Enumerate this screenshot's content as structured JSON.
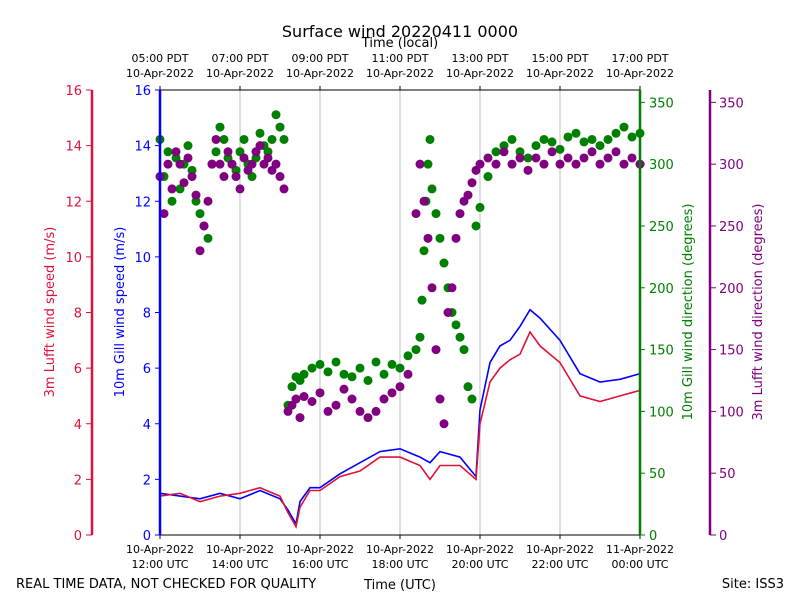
{
  "chart_data": {
    "type": "line+scatter",
    "title": "Surface wind 20220411 0000",
    "top_axis_label": "Time (local)",
    "xlabel": "Time (UTC)",
    "footer_left": "REAL TIME DATA, NOT CHECKED FOR QUALITY",
    "footer_right": "Site: ISS3",
    "x_range_utc_hours": [
      12,
      24
    ],
    "bottom_ticks": [
      {
        "t": 12,
        "line1": "10-Apr-2022",
        "line2": "12:00 UTC"
      },
      {
        "t": 14,
        "line1": "10-Apr-2022",
        "line2": "14:00 UTC"
      },
      {
        "t": 16,
        "line1": "10-Apr-2022",
        "line2": "16:00 UTC"
      },
      {
        "t": 18,
        "line1": "10-Apr-2022",
        "line2": "18:00 UTC"
      },
      {
        "t": 20,
        "line1": "10-Apr-2022",
        "line2": "20:00 UTC"
      },
      {
        "t": 22,
        "line1": "10-Apr-2022",
        "line2": "22:00 UTC"
      },
      {
        "t": 24,
        "line1": "11-Apr-2022",
        "line2": "00:00 UTC"
      }
    ],
    "top_ticks": [
      {
        "t": 12,
        "line1": "05:00 PDT",
        "line2": "10-Apr-2022"
      },
      {
        "t": 14,
        "line1": "07:00 PDT",
        "line2": "10-Apr-2022"
      },
      {
        "t": 16,
        "line1": "09:00 PDT",
        "line2": "10-Apr-2022"
      },
      {
        "t": 18,
        "line1": "11:00 PDT",
        "line2": "10-Apr-2022"
      },
      {
        "t": 20,
        "line1": "13:00 PDT",
        "line2": "10-Apr-2022"
      },
      {
        "t": 22,
        "line1": "15:00 PDT",
        "line2": "10-Apr-2022"
      },
      {
        "t": 24,
        "line1": "17:00 PDT",
        "line2": "10-Apr-2022"
      }
    ],
    "speed_ticks": [
      "0",
      "2",
      "4",
      "6",
      "8",
      "10",
      "12",
      "14",
      "16"
    ],
    "dir_ticks": [
      "0",
      "50",
      "100",
      "150",
      "200",
      "250",
      "300",
      "350"
    ],
    "speed_ylim": [
      0,
      16
    ],
    "dir_ylim": [
      0,
      360
    ],
    "axes": [
      {
        "name": "lufft-speed",
        "label": "3m Lufft wind speed (m/s)",
        "color": "#dc143c",
        "ylim": [
          0,
          16
        ]
      },
      {
        "name": "gill-speed",
        "label": "10m Gill wind speed (m/s)",
        "color": "#0000ff",
        "ylim": [
          0,
          16
        ]
      },
      {
        "name": "gill-direction",
        "label": "10m Gill wind direction (degrees)",
        "color": "#008000",
        "ylim": [
          0,
          360
        ]
      },
      {
        "name": "lufft-direction",
        "label": "3m Lufft wind direction (degrees)",
        "color": "#800080",
        "ylim": [
          0,
          360
        ]
      }
    ],
    "series": [
      {
        "name": "10m Gill wind speed",
        "kind": "line",
        "color": "#0000ff",
        "x": [
          12.0,
          12.5,
          13.0,
          13.5,
          14.0,
          14.5,
          15.0,
          15.2,
          15.4,
          15.5,
          15.75,
          16.0,
          16.5,
          17.0,
          17.5,
          18.0,
          18.5,
          18.75,
          19.0,
          19.5,
          19.9,
          20.0,
          20.25,
          20.5,
          20.75,
          21.0,
          21.25,
          21.5,
          22.0,
          22.5,
          23.0,
          23.5,
          24.0
        ],
        "y": [
          1.5,
          1.4,
          1.3,
          1.5,
          1.3,
          1.6,
          1.3,
          0.9,
          0.4,
          1.2,
          1.7,
          1.7,
          2.2,
          2.6,
          3.0,
          3.1,
          2.8,
          2.6,
          3.0,
          2.8,
          2.1,
          4.5,
          6.2,
          6.8,
          7.0,
          7.5,
          8.1,
          7.8,
          7.0,
          5.8,
          5.5,
          5.6,
          5.8
        ]
      },
      {
        "name": "3m Lufft wind speed",
        "kind": "line",
        "color": "#dc143c",
        "x": [
          12.0,
          12.5,
          13.0,
          13.5,
          14.0,
          14.5,
          15.0,
          15.2,
          15.4,
          15.5,
          15.75,
          16.0,
          16.5,
          17.0,
          17.5,
          18.0,
          18.5,
          18.75,
          19.0,
          19.5,
          19.9,
          20.0,
          20.25,
          20.5,
          20.75,
          21.0,
          21.25,
          21.5,
          22.0,
          22.5,
          23.0,
          23.5,
          24.0
        ],
        "y": [
          1.4,
          1.5,
          1.2,
          1.4,
          1.5,
          1.7,
          1.4,
          0.8,
          0.3,
          1.0,
          1.6,
          1.6,
          2.1,
          2.3,
          2.8,
          2.8,
          2.5,
          2.0,
          2.5,
          2.5,
          2.0,
          4.0,
          5.5,
          6.0,
          6.3,
          6.5,
          7.3,
          6.8,
          6.2,
          5.0,
          4.8,
          5.0,
          5.2
        ]
      },
      {
        "name": "10m Gill wind direction",
        "kind": "scatter",
        "color": "#008000",
        "x": [
          12.0,
          12.1,
          12.2,
          12.3,
          12.4,
          12.5,
          12.6,
          12.7,
          12.8,
          12.9,
          13.0,
          13.1,
          13.2,
          13.3,
          13.4,
          13.5,
          13.6,
          13.7,
          13.8,
          13.9,
          14.0,
          14.1,
          14.2,
          14.3,
          14.4,
          14.5,
          14.6,
          14.7,
          14.8,
          14.9,
          15.0,
          15.1,
          15.2,
          15.3,
          15.4,
          15.5,
          15.6,
          15.8,
          16.0,
          16.2,
          16.4,
          16.6,
          16.8,
          17.0,
          17.2,
          17.4,
          17.6,
          17.8,
          18.0,
          18.2,
          18.4,
          18.5,
          18.55,
          18.6,
          18.65,
          18.7,
          18.75,
          18.8,
          18.9,
          19.0,
          19.1,
          19.2,
          19.3,
          19.4,
          19.5,
          19.6,
          19.7,
          19.8,
          19.9,
          20.0,
          20.2,
          20.4,
          20.6,
          20.8,
          21.0,
          21.2,
          21.4,
          21.6,
          21.8,
          22.0,
          22.2,
          22.4,
          22.6,
          22.8,
          23.0,
          23.2,
          23.4,
          23.6,
          23.8,
          24.0
        ],
        "y": [
          320,
          290,
          310,
          270,
          305,
          280,
          300,
          315,
          295,
          270,
          260,
          250,
          240,
          300,
          310,
          330,
          320,
          305,
          300,
          295,
          310,
          320,
          300,
          290,
          305,
          325,
          315,
          310,
          320,
          340,
          330,
          320,
          105,
          120,
          128,
          125,
          130,
          135,
          138,
          132,
          140,
          130,
          128,
          135,
          125,
          140,
          130,
          138,
          135,
          145,
          150,
          160,
          190,
          230,
          270,
          300,
          320,
          280,
          260,
          240,
          220,
          200,
          180,
          170,
          160,
          150,
          120,
          110,
          250,
          265,
          290,
          310,
          315,
          320,
          310,
          305,
          315,
          320,
          318,
          312,
          322,
          325,
          318,
          320,
          315,
          320,
          325,
          330,
          322,
          325
        ]
      },
      {
        "name": "3m Lufft wind direction",
        "kind": "scatter",
        "color": "#800080",
        "x": [
          12.0,
          12.1,
          12.2,
          12.3,
          12.4,
          12.5,
          12.6,
          12.7,
          12.8,
          12.9,
          13.0,
          13.1,
          13.2,
          13.3,
          13.4,
          13.5,
          13.6,
          13.7,
          13.8,
          13.9,
          14.0,
          14.1,
          14.2,
          14.3,
          14.4,
          14.5,
          14.6,
          14.7,
          14.8,
          14.9,
          15.0,
          15.1,
          15.2,
          15.3,
          15.4,
          15.5,
          15.6,
          15.8,
          16.0,
          16.2,
          16.4,
          16.6,
          16.8,
          17.0,
          17.2,
          17.4,
          17.6,
          17.8,
          18.0,
          18.2,
          18.4,
          18.5,
          18.6,
          18.7,
          18.8,
          18.9,
          19.0,
          19.1,
          19.2,
          19.3,
          19.4,
          19.5,
          19.6,
          19.7,
          19.8,
          19.9,
          20.0,
          20.2,
          20.4,
          20.6,
          20.8,
          21.0,
          21.2,
          21.4,
          21.6,
          21.8,
          22.0,
          22.2,
          22.4,
          22.6,
          22.8,
          23.0,
          23.2,
          23.4,
          23.6,
          23.8,
          24.0
        ],
        "y": [
          290,
          260,
          300,
          280,
          310,
          300,
          285,
          305,
          290,
          275,
          230,
          250,
          270,
          300,
          320,
          300,
          290,
          310,
          300,
          290,
          280,
          305,
          295,
          300,
          310,
          315,
          300,
          305,
          295,
          300,
          290,
          280,
          100,
          105,
          110,
          95,
          112,
          108,
          115,
          100,
          105,
          118,
          110,
          100,
          95,
          100,
          110,
          115,
          120,
          130,
          260,
          300,
          270,
          240,
          200,
          150,
          110,
          90,
          180,
          200,
          240,
          260,
          270,
          275,
          285,
          295,
          300,
          305,
          300,
          310,
          300,
          305,
          295,
          305,
          300,
          310,
          300,
          305,
          300,
          305,
          310,
          300,
          305,
          310,
          300,
          305,
          300
        ]
      }
    ]
  }
}
